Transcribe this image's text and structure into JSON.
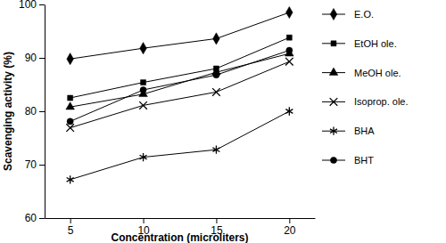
{
  "chart_data": {
    "type": "line",
    "x_label": "Concentration (microliters)",
    "y_label": "Scavenging activity (%)",
    "categories": [
      "5",
      "10",
      "15",
      "20"
    ],
    "ylim": [
      60,
      100
    ],
    "yticks": [
      60,
      70,
      80,
      90,
      100
    ],
    "grid": false,
    "legend": "right",
    "series": [
      {
        "name": "E.O.",
        "color": "#000000",
        "marker": "diamond",
        "line_style": "solid",
        "values": [
          89.8,
          91.8,
          93.6,
          98.5
        ]
      },
      {
        "name": "EtOH ole.",
        "color": "#000000",
        "marker": "square",
        "line_style": "solid",
        "values": [
          82.5,
          85.4,
          88.0,
          93.8
        ]
      },
      {
        "name": "MeOH ole.",
        "color": "#000000",
        "marker": "triangle",
        "line_style": "solid",
        "values": [
          80.8,
          83.2,
          87.3,
          90.8
        ]
      },
      {
        "name": "Isoprop. ole.",
        "color": "#000000",
        "marker": "x",
        "line_style": "solid",
        "values": [
          76.9,
          81.1,
          83.6,
          89.3
        ]
      },
      {
        "name": "BHA",
        "color": "#000000",
        "marker": "asterisk",
        "line_style": "solid",
        "values": [
          67.2,
          71.4,
          72.8,
          80.0
        ]
      },
      {
        "name": "BHT",
        "color": "#000000",
        "marker": "circle",
        "line_style": "solid",
        "values": [
          78.1,
          84.0,
          86.8,
          91.4
        ]
      }
    ]
  }
}
